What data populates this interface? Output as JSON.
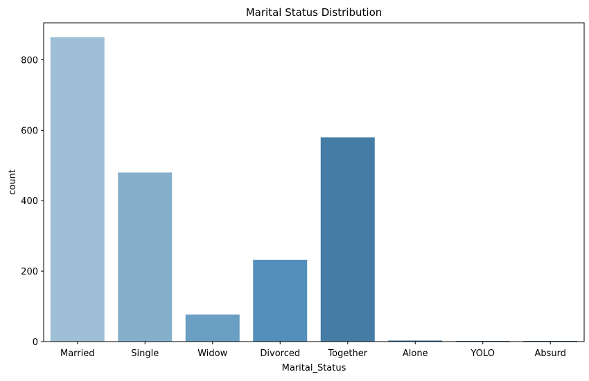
{
  "chart_data": {
    "type": "bar",
    "title": "Marital Status Distribution",
    "xlabel": "Marital_Status",
    "ylabel": "count",
    "categories": [
      "Married",
      "Single",
      "Widow",
      "Divorced",
      "Together",
      "Alone",
      "YOLO",
      "Absurd"
    ],
    "values": [
      864,
      480,
      77,
      232,
      580,
      3,
      2,
      2
    ],
    "ylim": [
      0,
      905
    ],
    "yticks": [
      0,
      200,
      400,
      600,
      800
    ],
    "colors": [
      "#9ebfd6",
      "#86afcb",
      "#6a9ec2",
      "#548fbb",
      "#447ca5",
      "#366a91",
      "#2e5a7b",
      "#284f6b"
    ],
    "grid": false,
    "legend": "none"
  }
}
